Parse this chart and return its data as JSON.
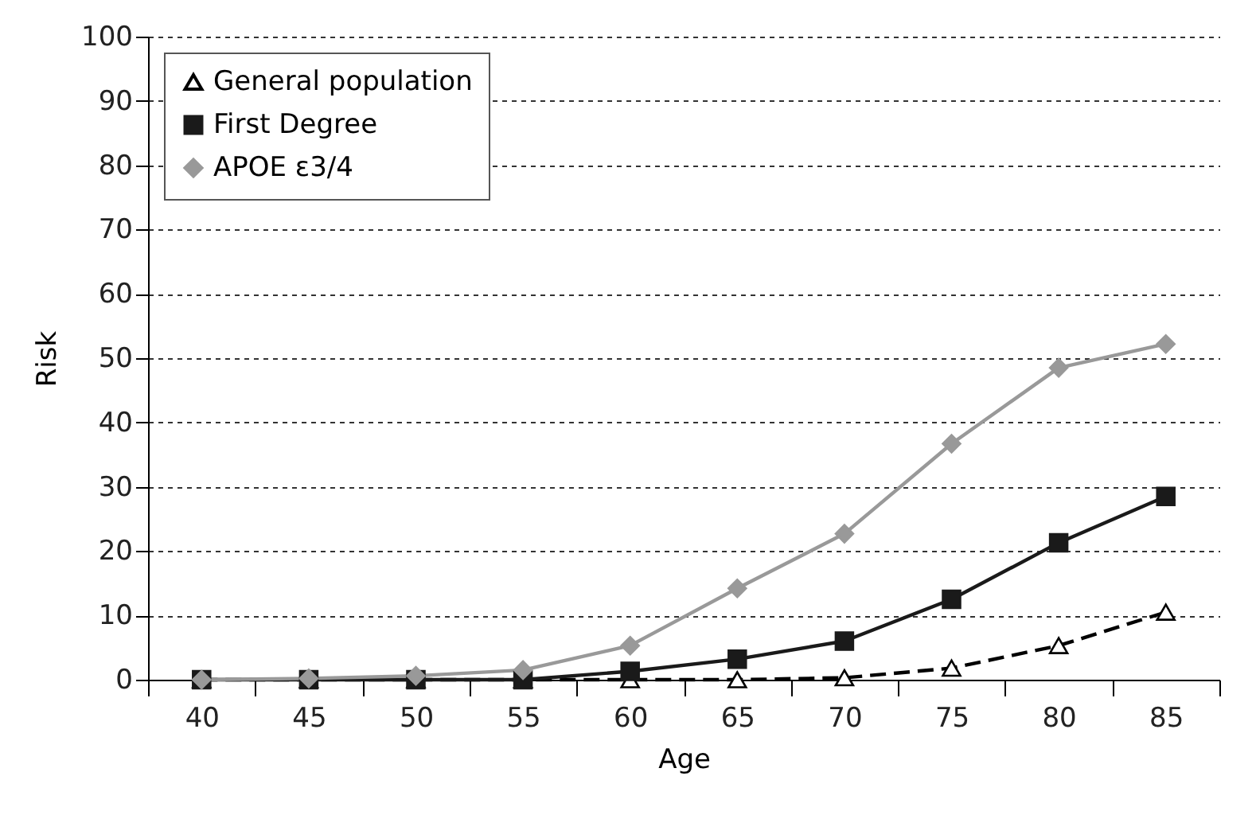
{
  "chart_data": {
    "type": "line",
    "xlabel": "Age",
    "ylabel": "Risk",
    "categories": [
      "40",
      "45",
      "50",
      "55",
      "60",
      "65",
      "70",
      "75",
      "80",
      "85"
    ],
    "series": [
      {
        "name": "General population",
        "color": "#000000",
        "marker": "triangle",
        "line_style": "dashed",
        "values": [
          0,
          0,
          0,
          0,
          0,
          0,
          0.3,
          1.8,
          5.3,
          10.5
        ]
      },
      {
        "name": "First Degree",
        "color": "#1a1a1a",
        "marker": "square",
        "line_style": "solid",
        "values": [
          0,
          0,
          0,
          0,
          1.3,
          3.2,
          6,
          12.5,
          21.3,
          28.5
        ]
      },
      {
        "name": "APOE ε3/4",
        "color": "#999999",
        "marker": "diamond",
        "line_style": "solid",
        "values": [
          0,
          0.2,
          0.6,
          1.5,
          5.3,
          14.2,
          22.7,
          36.7,
          48.5,
          52.2
        ]
      }
    ],
    "ylim": [
      0,
      100
    ],
    "yticks": [
      0,
      10,
      20,
      30,
      40,
      50,
      60,
      70,
      80,
      90,
      100
    ],
    "grid": "y",
    "legend": "top left"
  }
}
